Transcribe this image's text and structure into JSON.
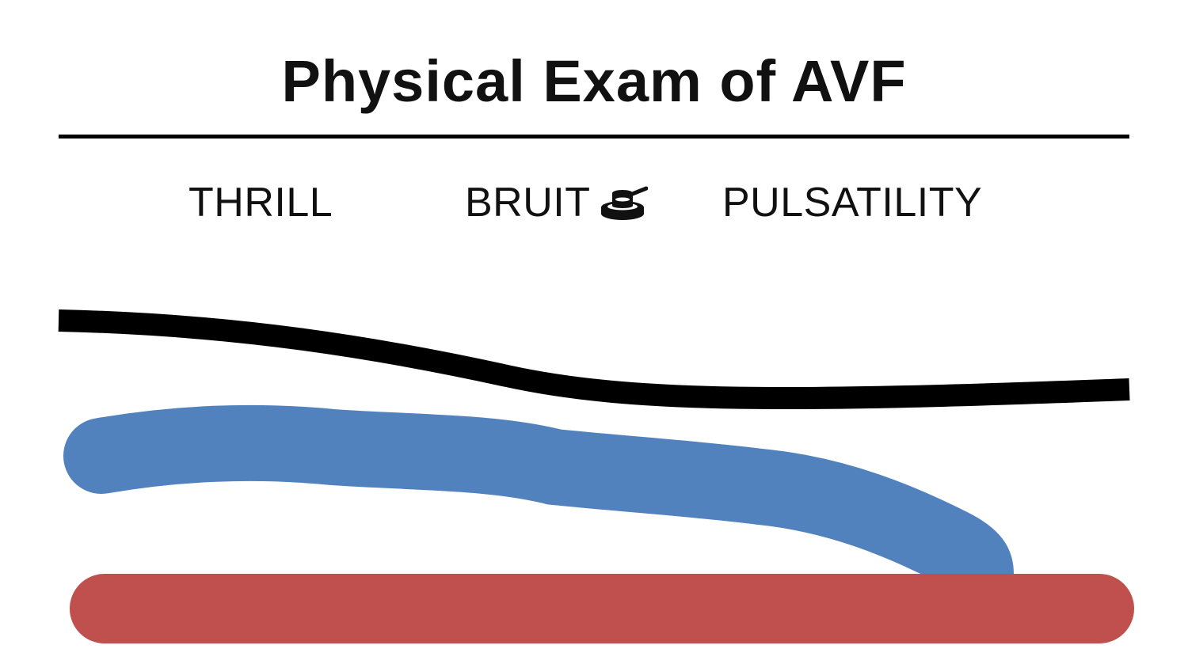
{
  "title": "Physical Exam of AVF",
  "labels": {
    "thrill": "THRILL",
    "bruit": "BRUIT",
    "pulsatility": "PULSATILITY"
  },
  "icons": {
    "bruit": "stethoscope-icon"
  },
  "colors": {
    "skin_line": "#000000",
    "vein": "#5182bd",
    "artery": "#c0504d"
  }
}
